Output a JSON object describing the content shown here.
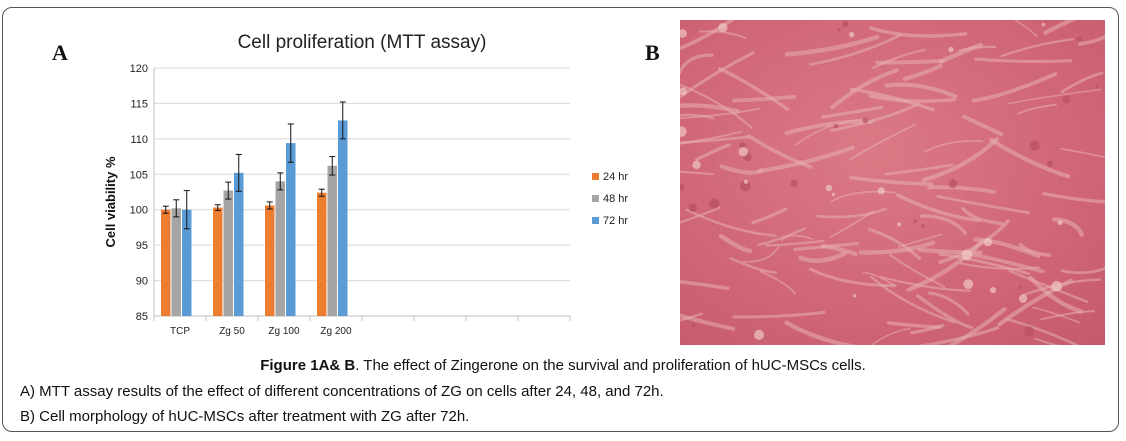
{
  "panel_a_letter": "A",
  "panel_b_letter": "B",
  "chart_data": {
    "type": "bar",
    "title": "Cell proliferation (MTT assay)",
    "xlabel": "",
    "ylabel": "Cell viability %",
    "ylim": [
      85,
      120
    ],
    "yticks": [
      85,
      90,
      95,
      100,
      105,
      110,
      115,
      120
    ],
    "categories": [
      "TCP",
      "Zg 50",
      "Zg 100",
      "Zg 200",
      "",
      "",
      "",
      ""
    ],
    "series": [
      {
        "name": "24 hr",
        "color": "#ED7D31",
        "values": [
          100.0,
          100.3,
          100.6,
          102.4,
          null,
          null,
          null,
          null
        ],
        "errors": [
          0.5,
          0.4,
          0.5,
          0.5,
          null,
          null,
          null,
          null
        ]
      },
      {
        "name": "48 hr",
        "color": "#A5A5A5",
        "values": [
          100.2,
          102.7,
          104.0,
          106.2,
          null,
          null,
          null,
          null
        ],
        "errors": [
          1.2,
          1.2,
          1.2,
          1.3,
          null,
          null,
          null,
          null
        ]
      },
      {
        "name": "72 hr",
        "color": "#5B9BD5",
        "values": [
          100.0,
          105.2,
          109.4,
          112.6,
          null,
          null,
          null,
          null
        ],
        "errors": [
          2.7,
          2.6,
          2.7,
          2.6,
          null,
          null,
          null,
          null
        ]
      }
    ],
    "grid": true,
    "legend": "right"
  },
  "caption": {
    "figure_label": "Figure 1A& B",
    "figure_text": ". The effect of Zingerone on the survival and proliferation of hUC-MSCs cells.",
    "line_a": "A) MTT assay results of the effect of different concentrations of ZG on cells after 24, 48, and 72h.",
    "line_b": "B) Cell morphology of hUC-MSCs after treatment with ZG after 72h."
  },
  "image_b": {
    "dominant_color": "#D46A78",
    "cell_color": "#E5A3A8"
  }
}
